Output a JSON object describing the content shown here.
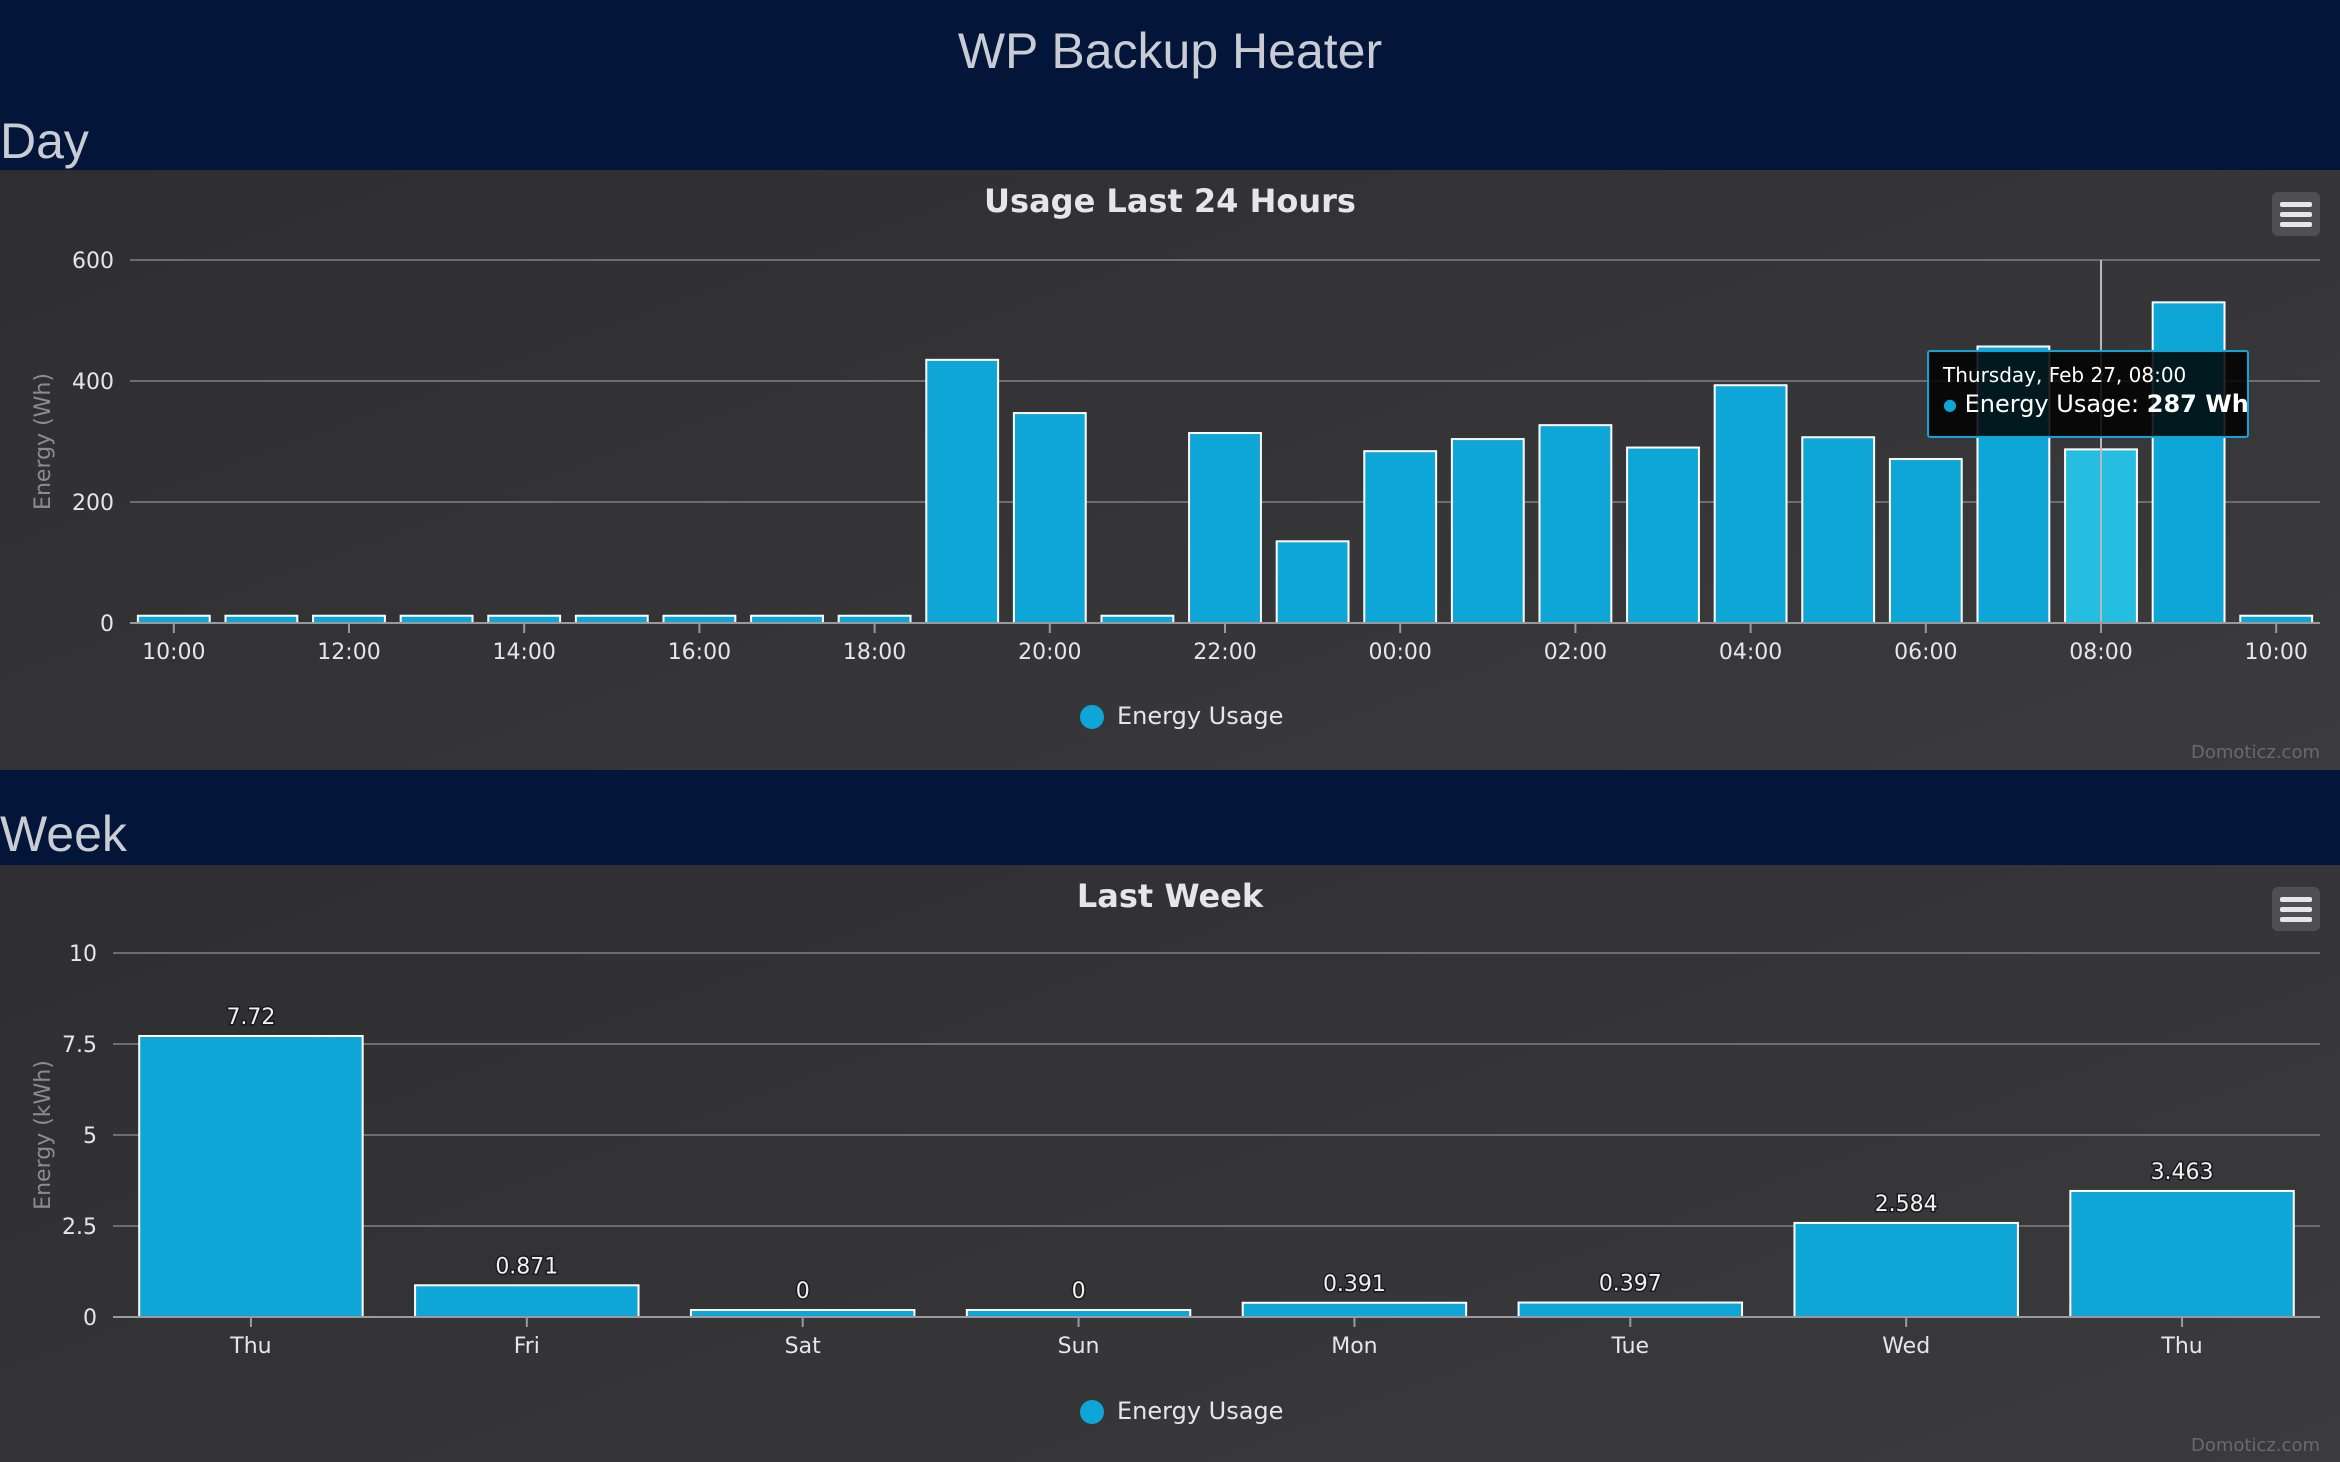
{
  "page": {
    "title": "WP Backup Heater"
  },
  "sections": {
    "day": "Day",
    "week": "Week"
  },
  "credit": "Domoticz.com",
  "colors": {
    "bar": "#0ea5d7",
    "bar_hover": "#25bde0",
    "header_bg": "#03163a",
    "panel_bg": "#333335"
  },
  "tooltip": {
    "date": "Thursday, Feb 27, 08:00",
    "series": "Energy Usage",
    "value": "287 Wh"
  },
  "chart_data": [
    {
      "type": "bar",
      "title": "Usage Last 24 Hours",
      "ylabel": "Energy (Wh)",
      "ylim": [
        0,
        600
      ],
      "yticks": [
        0,
        200,
        400,
        600
      ],
      "xticks": [
        "10:00",
        "12:00",
        "14:00",
        "16:00",
        "18:00",
        "20:00",
        "22:00",
        "00:00",
        "02:00",
        "04:00",
        "06:00",
        "08:00",
        "10:00"
      ],
      "categories": [
        "10:00",
        "11:00",
        "12:00",
        "13:00",
        "14:00",
        "15:00",
        "16:00",
        "17:00",
        "18:00",
        "19:00",
        "20:00",
        "21:00",
        "22:00",
        "23:00",
        "00:00",
        "01:00",
        "02:00",
        "03:00",
        "04:00",
        "05:00",
        "06:00",
        "07:00",
        "08:00",
        "09:00",
        "10:00"
      ],
      "series": [
        {
          "name": "Energy Usage",
          "values": [
            12,
            12,
            12,
            12,
            12,
            12,
            12,
            12,
            12,
            435,
            347,
            12,
            314,
            135,
            284,
            304,
            327,
            290,
            393,
            307,
            271,
            457,
            287,
            530,
            12
          ]
        }
      ],
      "highlight_index": 22,
      "legend": "bottom-center",
      "grid": true
    },
    {
      "type": "bar",
      "title": "Last Week",
      "ylabel": "Energy (kWh)",
      "ylim": [
        0,
        10
      ],
      "yticks": [
        "0",
        "2.5",
        "5",
        "7.5",
        "10"
      ],
      "categories": [
        "Thu",
        "Fri",
        "Sat",
        "Sun",
        "Mon",
        "Tue",
        "Wed",
        "Thu"
      ],
      "series": [
        {
          "name": "Energy Usage",
          "values": [
            7.72,
            0.871,
            0,
            0,
            0.391,
            0.397,
            2.584,
            3.463
          ],
          "labels": [
            "7.72",
            "0.871",
            "0",
            "0",
            "0.391",
            "0.397",
            "2.584",
            "3.463"
          ]
        }
      ],
      "legend": "bottom-center",
      "grid": true
    }
  ]
}
